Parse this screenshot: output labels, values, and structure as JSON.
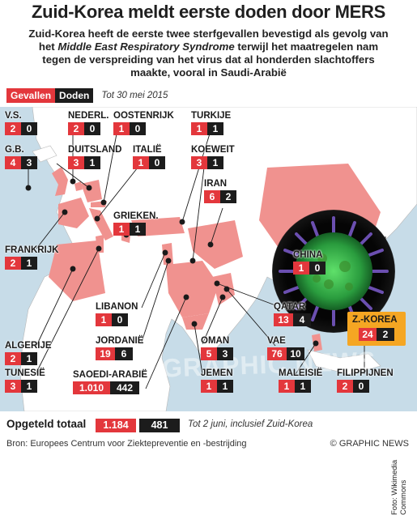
{
  "header": {
    "title": "Zuid-Korea meldt eerste doden door MERS",
    "subtitle_1": "Zuid-Korea heeft de eerste twee sterfgevallen bevestigd als gevolg van",
    "subtitle_2a": "het ",
    "subtitle_2b": "Middle East Respiratory Syndrome",
    "subtitle_2c": " terwijl het maatregelen nam",
    "subtitle_3": "tegen de verspreiding van het virus dat al honderden slachtoffers",
    "subtitle_4": "maakte, vooral in Saudi-Arabië"
  },
  "legend": {
    "cases": "Gevallen",
    "deaths": "Doden",
    "date": "Tot 30 mei 2015"
  },
  "countries": [
    {
      "id": "vs",
      "name": "V.S.",
      "cases": "2",
      "deaths": "0"
    },
    {
      "id": "gb",
      "name": "G.B.",
      "cases": "4",
      "deaths": "3"
    },
    {
      "id": "nl",
      "name": "NEDERL.",
      "cases": "2",
      "deaths": "0"
    },
    {
      "id": "at",
      "name": "OOSTENRIJK",
      "cases": "1",
      "deaths": "0"
    },
    {
      "id": "tr",
      "name": "TURKIJE",
      "cases": "1",
      "deaths": "1"
    },
    {
      "id": "de",
      "name": "DUITSLAND",
      "cases": "3",
      "deaths": "1"
    },
    {
      "id": "it",
      "name": "ITALIË",
      "cases": "1",
      "deaths": "0"
    },
    {
      "id": "kw",
      "name": "KOEWEIT",
      "cases": "3",
      "deaths": "1"
    },
    {
      "id": "ir",
      "name": "IRAN",
      "cases": "6",
      "deaths": "2"
    },
    {
      "id": "gr",
      "name": "GRIEKEN.",
      "cases": "1",
      "deaths": "1"
    },
    {
      "id": "fr",
      "name": "FRANKRIJK",
      "cases": "2",
      "deaths": "1"
    },
    {
      "id": "cn",
      "name": "CHINA",
      "cases": "1",
      "deaths": "0"
    },
    {
      "id": "lb",
      "name": "LIBANON",
      "cases": "1",
      "deaths": "0"
    },
    {
      "id": "jo",
      "name": "JORDANIË",
      "cases": "19",
      "deaths": "6"
    },
    {
      "id": "qa",
      "name": "QATAR",
      "cases": "13",
      "deaths": "4"
    },
    {
      "id": "dz",
      "name": "ALGERIJE",
      "cases": "2",
      "deaths": "1"
    },
    {
      "id": "om",
      "name": "OMAN",
      "cases": "5",
      "deaths": "3"
    },
    {
      "id": "ae",
      "name": "VAE",
      "cases": "76",
      "deaths": "10"
    },
    {
      "id": "tn",
      "name": "TUNESIË",
      "cases": "3",
      "deaths": "1"
    },
    {
      "id": "sa",
      "name": "SAOEDI-ARABIË",
      "cases": "1.010",
      "deaths": "442"
    },
    {
      "id": "ye",
      "name": "JEMEN",
      "cases": "1",
      "deaths": "1"
    },
    {
      "id": "my",
      "name": "MALEISIË",
      "cases": "1",
      "deaths": "1"
    },
    {
      "id": "ph",
      "name": "FILIPPIJNEN",
      "cases": "2",
      "deaths": "0"
    }
  ],
  "korea": {
    "name": "Z.-KOREA",
    "cases": "24",
    "deaths": "2"
  },
  "credit": "Foto: Wikimedia Commons",
  "watermark": "GRAPHIC NEWS",
  "total": {
    "label": "Opgeteld totaal",
    "cases": "1.184",
    "deaths": "481",
    "note": "Tot 2 juni, inclusief Zuid-Korea"
  },
  "footer": {
    "source": "Bron: Europees Centrum voor Ziektepreventie en -bestrijding",
    "brand": "© GRAPHIC NEWS"
  },
  "colors": {
    "cases": "#e3373c",
    "deaths": "#1c1c1c",
    "sea": "#c7dce8",
    "land": "#ffffff",
    "affected": "#f0928f",
    "korea_box": "#f5a623"
  }
}
